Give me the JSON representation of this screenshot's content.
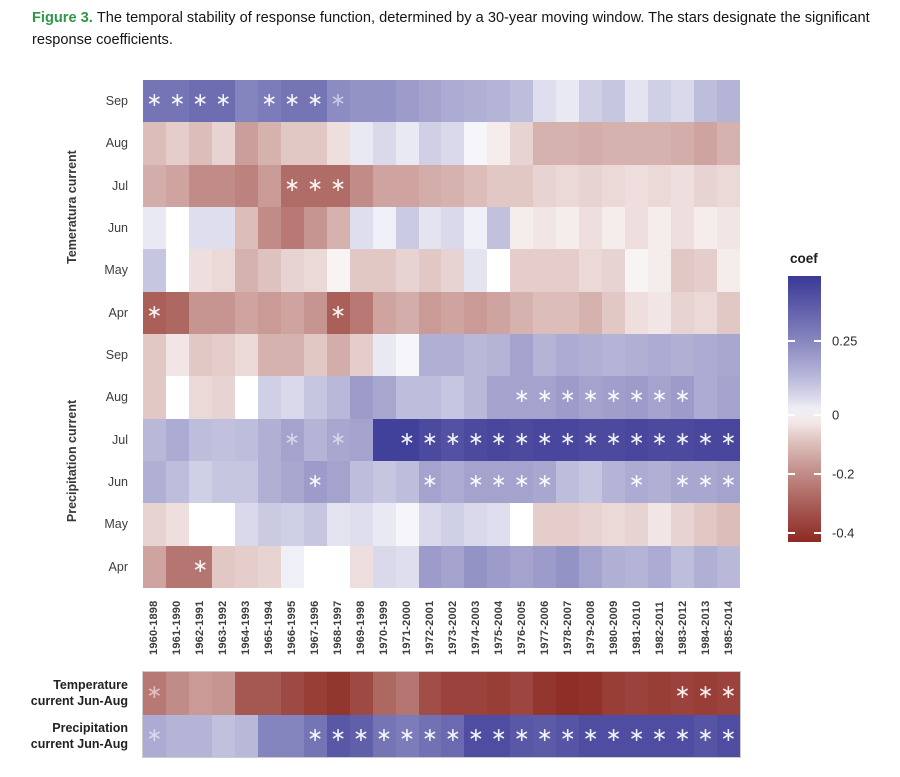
{
  "caption": {
    "label": "Figure 3.",
    "text": "The temporal stability of response function, determined by a 30-year moving window. The stars designate the significant response coefficients."
  },
  "chart_data": {
    "type": "heatmap",
    "title": "The temporal stability of response function (30-year moving window)",
    "star_glyph": "∗",
    "colorbar": {
      "title": "coef",
      "tick_labels": [
        "0.25",
        "0",
        "-0.2",
        "-0.4"
      ],
      "tick_values": [
        0.25,
        0,
        -0.2,
        -0.4
      ],
      "vmax": 0.47,
      "vmin": -0.43,
      "color_positive": "#3a3996",
      "color_zero": "#ffffff",
      "color_negative": "#8d2a22",
      "legend_position": "right"
    },
    "x_categories": [
      "1960-1898",
      "1961-1990",
      "1962-1991",
      "1963-1992",
      "1964-1993",
      "1965-1994",
      "1966-1995",
      "1967-1996",
      "1968-1997",
      "1969-1998",
      "1970-1999",
      "1971-2000",
      "1972-2001",
      "1973-2002",
      "1974-2003",
      "1975-2004",
      "1976-2005",
      "1977-2006",
      "1978-2007",
      "1979-2008",
      "1980-2009",
      "1981-2010",
      "1982-2011",
      "1983-2012",
      "1984-2013",
      "1985-2014"
    ],
    "row_groups": [
      {
        "label": "Temeratura current",
        "row_indices": [
          0,
          1,
          2,
          3,
          4,
          5
        ]
      },
      {
        "label": "Precipitation current",
        "row_indices": [
          6,
          7,
          8,
          9,
          10,
          11
        ]
      }
    ],
    "rows": [
      {
        "group": "Temeratura current",
        "month": "Sep",
        "values": [
          0.3,
          0.3,
          0.32,
          0.32,
          0.26,
          0.28,
          0.3,
          0.3,
          0.24,
          0.22,
          0.22,
          0.2,
          0.18,
          0.16,
          0.15,
          0.14,
          0.12,
          0.05,
          0.03,
          0.08,
          0.1,
          0.04,
          0.08,
          0.06,
          0.12,
          0.14
        ],
        "stars": [
          0,
          1,
          2,
          3,
          5,
          6,
          7
        ],
        "faint_stars": [
          8
        ]
      },
      {
        "group": "Temeratura current",
        "month": "Aug",
        "values": [
          -0.1,
          -0.07,
          -0.1,
          -0.06,
          -0.16,
          -0.12,
          -0.08,
          -0.08,
          -0.04,
          0.03,
          0.06,
          0.03,
          0.08,
          0.06,
          0.01,
          -0.02,
          -0.06,
          -0.12,
          -0.12,
          -0.13,
          -0.12,
          -0.12,
          -0.12,
          -0.13,
          -0.15,
          -0.12
        ],
        "stars": [],
        "faint_stars": []
      },
      {
        "group": "Temeratura current",
        "month": "Jul",
        "values": [
          -0.13,
          -0.15,
          -0.2,
          -0.2,
          -0.22,
          -0.17,
          -0.27,
          -0.27,
          -0.27,
          -0.2,
          -0.15,
          -0.15,
          -0.13,
          -0.12,
          -0.1,
          -0.08,
          -0.08,
          -0.06,
          -0.05,
          -0.06,
          -0.05,
          -0.04,
          -0.05,
          -0.04,
          -0.06,
          -0.05
        ],
        "stars": [
          6,
          7,
          8
        ],
        "faint_stars": []
      },
      {
        "group": "Temeratura current",
        "month": "Jun",
        "values": [
          0.03,
          0.0,
          0.05,
          0.05,
          -0.1,
          -0.2,
          -0.24,
          -0.18,
          -0.12,
          0.05,
          0.02,
          0.09,
          0.04,
          0.06,
          0.02,
          0.11,
          -0.02,
          -0.03,
          -0.02,
          -0.04,
          -0.02,
          -0.04,
          -0.02,
          -0.04,
          -0.02,
          -0.03
        ],
        "stars": [],
        "faint_stars": []
      },
      {
        "group": "Temeratura current",
        "month": "May",
        "values": [
          0.1,
          0.0,
          -0.04,
          -0.05,
          -0.12,
          -0.09,
          -0.06,
          -0.05,
          -0.01,
          -0.08,
          -0.08,
          -0.06,
          -0.08,
          -0.06,
          0.04,
          0.0,
          -0.07,
          -0.07,
          -0.07,
          -0.05,
          -0.06,
          -0.01,
          -0.02,
          -0.08,
          -0.07,
          -0.02
        ],
        "stars": [],
        "faint_stars": []
      },
      {
        "group": "Temeratura current",
        "month": "Apr",
        "values": [
          -0.3,
          -0.28,
          -0.18,
          -0.18,
          -0.15,
          -0.17,
          -0.15,
          -0.18,
          -0.3,
          -0.24,
          -0.15,
          -0.13,
          -0.17,
          -0.15,
          -0.17,
          -0.15,
          -0.12,
          -0.1,
          -0.1,
          -0.12,
          -0.08,
          -0.04,
          -0.03,
          -0.06,
          -0.05,
          -0.08
        ],
        "stars": [
          0,
          8
        ],
        "faint_stars": []
      },
      {
        "group": "Precipitation current",
        "month": "Sep",
        "values": [
          -0.08,
          -0.03,
          -0.08,
          -0.07,
          -0.05,
          -0.12,
          -0.12,
          -0.08,
          -0.13,
          -0.07,
          0.03,
          0.01,
          0.15,
          0.15,
          0.13,
          0.14,
          0.18,
          0.14,
          0.16,
          0.15,
          0.14,
          0.15,
          0.16,
          0.15,
          0.16,
          0.17
        ],
        "stars": [],
        "faint_stars": []
      },
      {
        "group": "Precipitation current",
        "month": "Aug",
        "values": [
          -0.08,
          0.0,
          -0.05,
          -0.06,
          0.0,
          0.08,
          0.06,
          0.1,
          0.13,
          0.2,
          0.17,
          0.12,
          0.12,
          0.1,
          0.13,
          0.18,
          0.18,
          0.18,
          0.2,
          0.18,
          0.19,
          0.2,
          0.18,
          0.2,
          0.16,
          0.18
        ],
        "stars": [
          16,
          17,
          18,
          19,
          20,
          21,
          22,
          23
        ],
        "faint_stars": []
      },
      {
        "group": "Precipitation current",
        "month": "Jul",
        "values": [
          0.13,
          0.16,
          0.12,
          0.11,
          0.12,
          0.15,
          0.18,
          0.14,
          0.17,
          0.18,
          0.45,
          0.45,
          0.42,
          0.4,
          0.42,
          0.43,
          0.42,
          0.43,
          0.43,
          0.42,
          0.42,
          0.43,
          0.42,
          0.42,
          0.43,
          0.43
        ],
        "stars": [
          11,
          12,
          13,
          14,
          15,
          16,
          17,
          18,
          19,
          20,
          21,
          22,
          23,
          24,
          25
        ],
        "faint_stars": [
          6,
          8
        ]
      },
      {
        "group": "Precipitation current",
        "month": "Jun",
        "values": [
          0.15,
          0.12,
          0.08,
          0.1,
          0.1,
          0.15,
          0.17,
          0.2,
          0.18,
          0.12,
          0.1,
          0.12,
          0.18,
          0.16,
          0.18,
          0.18,
          0.18,
          0.17,
          0.12,
          0.1,
          0.14,
          0.16,
          0.15,
          0.17,
          0.17,
          0.18
        ],
        "stars": [
          7,
          12,
          14,
          15,
          16,
          17,
          21,
          23,
          24,
          25
        ],
        "faint_stars": []
      },
      {
        "group": "Precipitation current",
        "month": "May",
        "values": [
          -0.06,
          -0.04,
          0.0,
          0.0,
          0.06,
          0.09,
          0.08,
          0.1,
          0.04,
          0.05,
          0.03,
          0.01,
          0.06,
          0.08,
          0.06,
          0.05,
          0.0,
          -0.07,
          -0.07,
          -0.06,
          -0.05,
          -0.06,
          -0.03,
          -0.06,
          -0.08,
          -0.1
        ],
        "stars": [],
        "faint_stars": []
      },
      {
        "group": "Precipitation current",
        "month": "Apr",
        "values": [
          -0.15,
          -0.25,
          -0.25,
          -0.08,
          -0.07,
          -0.06,
          0.02,
          0.0,
          0.0,
          -0.04,
          0.06,
          0.05,
          0.2,
          0.18,
          0.22,
          0.2,
          0.18,
          0.2,
          0.22,
          0.18,
          0.15,
          0.14,
          0.16,
          0.12,
          0.15,
          0.13
        ],
        "stars": [
          2
        ],
        "faint_stars": []
      }
    ],
    "summary_rows": [
      {
        "label": "Temperature current Jun-Aug",
        "values": [
          -0.24,
          -0.2,
          -0.17,
          -0.18,
          -0.32,
          -0.32,
          -0.35,
          -0.38,
          -0.4,
          -0.35,
          -0.28,
          -0.25,
          -0.34,
          -0.37,
          -0.37,
          -0.38,
          -0.36,
          -0.4,
          -0.42,
          -0.41,
          -0.38,
          -0.37,
          -0.38,
          -0.37,
          -0.38,
          -0.37
        ],
        "stars": [
          23,
          24,
          25
        ],
        "faint_stars": [
          0
        ]
      },
      {
        "label": "Precipitation current Jun-Aug",
        "values": [
          0.16,
          0.14,
          0.14,
          0.11,
          0.13,
          0.26,
          0.26,
          0.3,
          0.38,
          0.36,
          0.3,
          0.28,
          0.31,
          0.33,
          0.41,
          0.41,
          0.38,
          0.37,
          0.39,
          0.41,
          0.41,
          0.41,
          0.41,
          0.41,
          0.39,
          0.41
        ],
        "stars": [
          7,
          8,
          9,
          10,
          11,
          12,
          13,
          14,
          15,
          16,
          17,
          18,
          19,
          20,
          21,
          22,
          23,
          24,
          25
        ],
        "faint_stars": [
          0
        ]
      }
    ]
  }
}
